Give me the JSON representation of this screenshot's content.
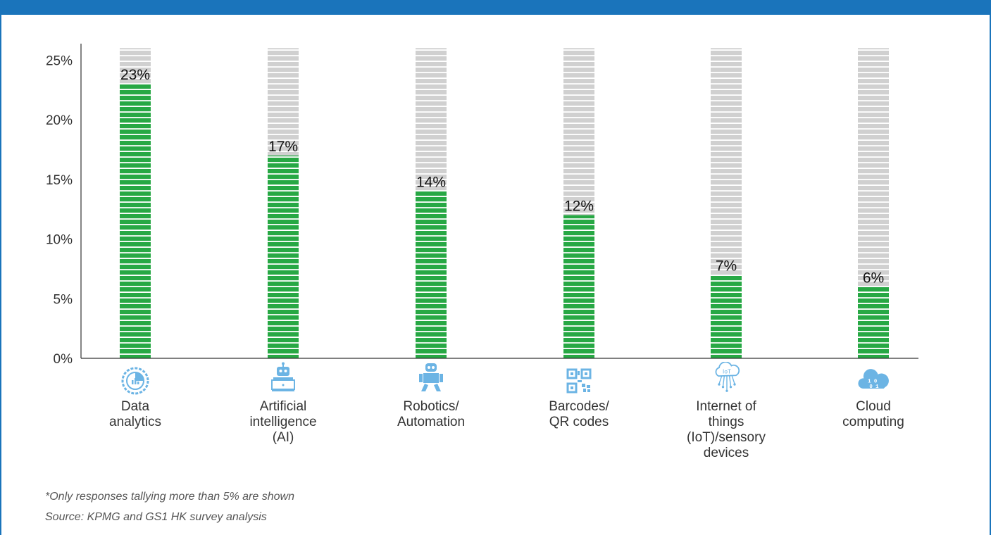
{
  "chart_data": {
    "type": "bar",
    "categories": [
      "Data\nanalytics",
      "Artificial\nintelligence\n(AI)",
      "Robotics/\nAutomation",
      "Barcodes/\nQR codes",
      "Internet of\nthings\n(IoT)/sensory\ndevices",
      "Cloud\ncomputing"
    ],
    "values": [
      23,
      17,
      14,
      12,
      7,
      6
    ],
    "data_labels": [
      "23%",
      "17%",
      "14%",
      "12%",
      "7%",
      "6%"
    ],
    "yticks": [
      "0%",
      "5%",
      "10%",
      "15%",
      "20%",
      "25%"
    ],
    "ylim": [
      0,
      25
    ],
    "bar_max": 26,
    "grid": false,
    "colors": {
      "bar": "#27a844",
      "track": "#d0d0d0",
      "accent": "#1a74bb",
      "icon": "#6cb4e4"
    },
    "icons": [
      "data-analytics-icon",
      "ai-robot-icon",
      "robotics-icon",
      "qr-code-icon",
      "iot-cloud-icon",
      "cloud-computing-icon"
    ]
  },
  "icon_text": {
    "iot": "IoT",
    "cloud": "1 0\n0 1"
  },
  "footnote": "*Only responses tallying more than 5% are shown",
  "source": "Source: KPMG and GS1 HK survey analysis"
}
